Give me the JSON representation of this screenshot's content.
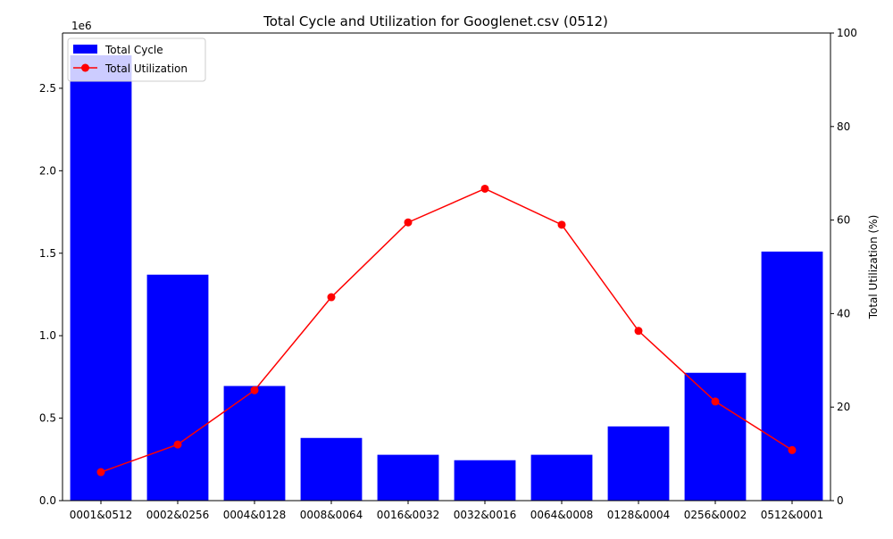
{
  "chart_data": {
    "type": "bar+line",
    "title": "Total Cycle and Utilization for Googlenet.csv (0512)",
    "xlabel": "",
    "ylabel_left": "",
    "ylabel_right": "Total Utilization (%)",
    "left_axis_offset_label": "1e6",
    "categories": [
      "0001&0512",
      "0002&0256",
      "0004&0128",
      "0008&0064",
      "0016&0032",
      "0032&0016",
      "0064&0008",
      "0128&0004",
      "0256&0002",
      "0512&0001"
    ],
    "series": [
      {
        "name": "Total Cycle",
        "kind": "bar",
        "axis": "left",
        "color": "#0000ff",
        "values": [
          2700000,
          1370000,
          695000,
          380000,
          278000,
          245000,
          278000,
          450000,
          775000,
          1510000
        ]
      },
      {
        "name": "Total Utilization",
        "kind": "line",
        "axis": "right",
        "color": "#ff0000",
        "values": [
          6.1,
          12.0,
          23.6,
          43.5,
          59.5,
          66.7,
          59.0,
          36.3,
          21.2,
          10.8
        ]
      }
    ],
    "left_ylim": [
      0,
      2835000
    ],
    "left_yticks": [
      0,
      500000,
      1000000,
      1500000,
      2000000,
      2500000
    ],
    "left_ytick_labels": [
      "0.0",
      "0.5",
      "1.0",
      "1.5",
      "2.0",
      "2.5"
    ],
    "right_ylim": [
      0,
      100
    ],
    "right_yticks": [
      0,
      20,
      40,
      60,
      80,
      100
    ],
    "right_ytick_labels": [
      "0",
      "20",
      "40",
      "60",
      "80",
      "100"
    ],
    "grid": false,
    "legend_position": "top-left"
  }
}
